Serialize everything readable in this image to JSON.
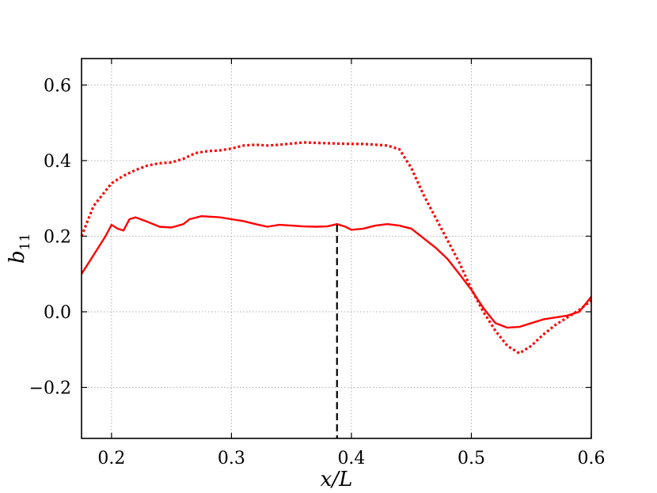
{
  "chart_data": {
    "type": "line",
    "xlabel": "x/L",
    "ylabel": "b11",
    "ylabel_parts": {
      "base": "b",
      "sub": "11"
    },
    "xlim": [
      0.175,
      0.6
    ],
    "ylim": [
      -0.335,
      0.67
    ],
    "grid": true,
    "x_ticks": [
      0.2,
      0.3,
      0.4,
      0.5,
      0.6
    ],
    "x_tick_labels": [
      "0.2",
      "0.3",
      "0.4",
      "0.5",
      "0.6"
    ],
    "y_ticks": [
      -0.2,
      0.0,
      0.2,
      0.4,
      0.6
    ],
    "y_tick_labels": [
      "−0.2",
      "0.0",
      "0.2",
      "0.4",
      "0.6"
    ],
    "vline": {
      "x": 0.388,
      "y_from": -0.335,
      "y_to": 0.23,
      "color": "#000000",
      "style": "dashed"
    },
    "series": [
      {
        "style": "solid",
        "color": "#ff0000",
        "points": [
          [
            0.175,
            0.1
          ],
          [
            0.185,
            0.15
          ],
          [
            0.195,
            0.2
          ],
          [
            0.2,
            0.23
          ],
          [
            0.205,
            0.22
          ],
          [
            0.21,
            0.215
          ],
          [
            0.215,
            0.245
          ],
          [
            0.22,
            0.25
          ],
          [
            0.23,
            0.238
          ],
          [
            0.24,
            0.225
          ],
          [
            0.25,
            0.223
          ],
          [
            0.26,
            0.232
          ],
          [
            0.265,
            0.245
          ],
          [
            0.275,
            0.253
          ],
          [
            0.29,
            0.25
          ],
          [
            0.3,
            0.245
          ],
          [
            0.31,
            0.24
          ],
          [
            0.32,
            0.232
          ],
          [
            0.33,
            0.225
          ],
          [
            0.34,
            0.23
          ],
          [
            0.35,
            0.228
          ],
          [
            0.36,
            0.226
          ],
          [
            0.37,
            0.225
          ],
          [
            0.38,
            0.226
          ],
          [
            0.388,
            0.232
          ],
          [
            0.395,
            0.225
          ],
          [
            0.4,
            0.217
          ],
          [
            0.41,
            0.22
          ],
          [
            0.42,
            0.228
          ],
          [
            0.43,
            0.232
          ],
          [
            0.44,
            0.228
          ],
          [
            0.45,
            0.22
          ],
          [
            0.46,
            0.195
          ],
          [
            0.47,
            0.17
          ],
          [
            0.48,
            0.14
          ],
          [
            0.49,
            0.1
          ],
          [
            0.5,
            0.058
          ],
          [
            0.51,
            0.01
          ],
          [
            0.52,
            -0.03
          ],
          [
            0.53,
            -0.042
          ],
          [
            0.54,
            -0.04
          ],
          [
            0.55,
            -0.03
          ],
          [
            0.56,
            -0.02
          ],
          [
            0.57,
            -0.015
          ],
          [
            0.58,
            -0.01
          ],
          [
            0.59,
            0.0
          ],
          [
            0.6,
            0.04
          ]
        ]
      },
      {
        "style": "dotted",
        "color": "#ff0000",
        "points": [
          [
            0.175,
            0.2
          ],
          [
            0.185,
            0.28
          ],
          [
            0.195,
            0.32
          ],
          [
            0.2,
            0.34
          ],
          [
            0.21,
            0.36
          ],
          [
            0.22,
            0.375
          ],
          [
            0.23,
            0.387
          ],
          [
            0.24,
            0.393
          ],
          [
            0.25,
            0.395
          ],
          [
            0.26,
            0.405
          ],
          [
            0.27,
            0.42
          ],
          [
            0.28,
            0.425
          ],
          [
            0.29,
            0.427
          ],
          [
            0.3,
            0.432
          ],
          [
            0.31,
            0.44
          ],
          [
            0.32,
            0.442
          ],
          [
            0.33,
            0.44
          ],
          [
            0.34,
            0.442
          ],
          [
            0.35,
            0.445
          ],
          [
            0.36,
            0.448
          ],
          [
            0.37,
            0.447
          ],
          [
            0.38,
            0.446
          ],
          [
            0.39,
            0.445
          ],
          [
            0.4,
            0.444
          ],
          [
            0.41,
            0.444
          ],
          [
            0.42,
            0.442
          ],
          [
            0.43,
            0.44
          ],
          [
            0.44,
            0.43
          ],
          [
            0.45,
            0.38
          ],
          [
            0.46,
            0.31
          ],
          [
            0.47,
            0.25
          ],
          [
            0.48,
            0.19
          ],
          [
            0.49,
            0.13
          ],
          [
            0.5,
            0.06
          ],
          [
            0.51,
            0.0
          ],
          [
            0.52,
            -0.05
          ],
          [
            0.53,
            -0.09
          ],
          [
            0.54,
            -0.11
          ],
          [
            0.55,
            -0.09
          ],
          [
            0.56,
            -0.06
          ],
          [
            0.57,
            -0.035
          ],
          [
            0.58,
            -0.015
          ],
          [
            0.59,
            0.005
          ],
          [
            0.6,
            0.03
          ]
        ]
      }
    ]
  }
}
